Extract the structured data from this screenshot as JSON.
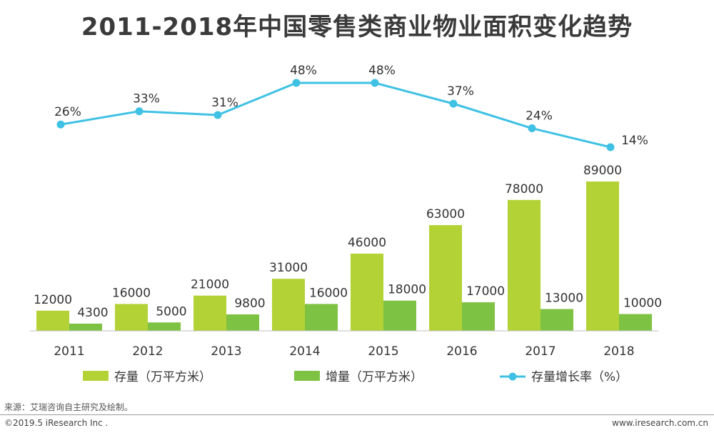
{
  "title": "2011-2018年中国零售类商业物业面积变化趋势",
  "source": "来源：艾瑞咨询自主研究及绘制。",
  "copyright": "©2019.5 iResearch Inc .",
  "website": "www.iresearch.com.cn",
  "colors": {
    "stock_bar": "#b3d235",
    "increase_bar": "#7ec243",
    "growth_line": "#3fc1e4",
    "axis": "#bfbfbf",
    "text": "#333333"
  },
  "chart_data": {
    "type": "bar",
    "categories": [
      "2011",
      "2012",
      "2013",
      "2014",
      "2015",
      "2016",
      "2017",
      "2018"
    ],
    "series": [
      {
        "name": "存量（万平方米）",
        "type": "bar",
        "values": [
          12000,
          16000,
          21000,
          31000,
          46000,
          63000,
          78000,
          89000
        ]
      },
      {
        "name": "增量（万平方米）",
        "type": "bar",
        "values": [
          4300,
          5000,
          9800,
          16000,
          18000,
          17000,
          13000,
          10000
        ]
      },
      {
        "name": "存量增长率（%）",
        "type": "line",
        "values": [
          26,
          33,
          31,
          48,
          48,
          37,
          24,
          14
        ],
        "unit": "%"
      }
    ],
    "legend_position": "bottom",
    "grid": false
  }
}
